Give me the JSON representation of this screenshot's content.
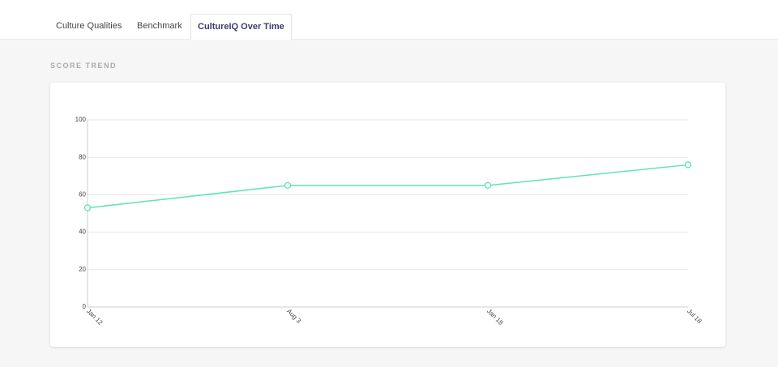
{
  "tabs": [
    "Culture Qualities",
    "Benchmark",
    "CultureIQ Over Time"
  ],
  "active_tab": 2,
  "section_title": "SCORE TREND",
  "chart_data": {
    "type": "line",
    "categories": [
      "Jan 12",
      "Aug 3",
      "Jan 18",
      "Jul 18"
    ],
    "series": [
      {
        "values": [
          53,
          65,
          65,
          76
        ],
        "color": "#5fe3b8"
      }
    ],
    "ylim": [
      0,
      100
    ],
    "yticks": [
      0,
      20,
      40,
      60,
      80,
      100
    ],
    "grid": true
  }
}
